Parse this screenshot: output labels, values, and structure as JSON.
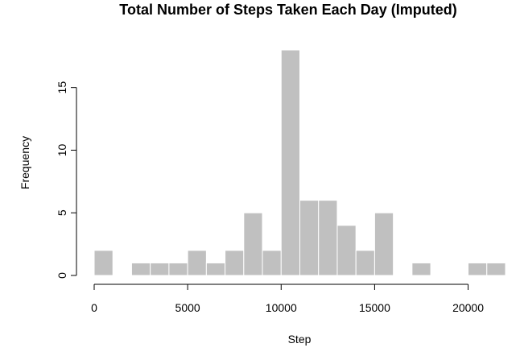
{
  "chart_data": {
    "type": "bar",
    "title": "Total Number of Steps Taken Each Day (Imputed)",
    "xlabel": "Step",
    "ylabel": "Frequency",
    "bin_width": 1000,
    "xlim": [
      0,
      22000
    ],
    "ylim": [
      0,
      18
    ],
    "x_ticks": [
      0,
      5000,
      10000,
      15000,
      20000
    ],
    "y_ticks": [
      0,
      5,
      10,
      15
    ],
    "bins": [
      {
        "start": 0,
        "end": 1000,
        "count": 2
      },
      {
        "start": 1000,
        "end": 2000,
        "count": 0
      },
      {
        "start": 2000,
        "end": 3000,
        "count": 1
      },
      {
        "start": 3000,
        "end": 4000,
        "count": 1
      },
      {
        "start": 4000,
        "end": 5000,
        "count": 1
      },
      {
        "start": 5000,
        "end": 6000,
        "count": 2
      },
      {
        "start": 6000,
        "end": 7000,
        "count": 1
      },
      {
        "start": 7000,
        "end": 8000,
        "count": 2
      },
      {
        "start": 8000,
        "end": 9000,
        "count": 5
      },
      {
        "start": 9000,
        "end": 10000,
        "count": 2
      },
      {
        "start": 10000,
        "end": 11000,
        "count": 18
      },
      {
        "start": 11000,
        "end": 12000,
        "count": 6
      },
      {
        "start": 12000,
        "end": 13000,
        "count": 6
      },
      {
        "start": 13000,
        "end": 14000,
        "count": 4
      },
      {
        "start": 14000,
        "end": 15000,
        "count": 2
      },
      {
        "start": 15000,
        "end": 16000,
        "count": 5
      },
      {
        "start": 16000,
        "end": 17000,
        "count": 0
      },
      {
        "start": 17000,
        "end": 18000,
        "count": 1
      },
      {
        "start": 18000,
        "end": 19000,
        "count": 0
      },
      {
        "start": 19000,
        "end": 20000,
        "count": 0
      },
      {
        "start": 20000,
        "end": 21000,
        "count": 1
      },
      {
        "start": 21000,
        "end": 22000,
        "count": 1
      }
    ],
    "bar_color": "#c0c0c0",
    "grid": false
  }
}
